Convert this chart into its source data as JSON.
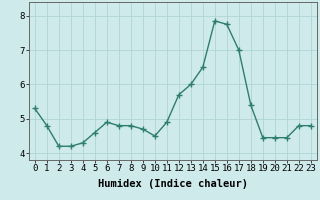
{
  "x": [
    0,
    1,
    2,
    3,
    4,
    5,
    6,
    7,
    8,
    9,
    10,
    11,
    12,
    13,
    14,
    15,
    16,
    17,
    18,
    19,
    20,
    21,
    22,
    23
  ],
  "y": [
    5.3,
    4.8,
    4.2,
    4.2,
    4.3,
    4.6,
    4.9,
    4.8,
    4.8,
    4.7,
    4.5,
    4.9,
    5.7,
    6.0,
    6.5,
    7.85,
    7.75,
    7.0,
    5.4,
    4.45,
    4.45,
    4.45,
    4.8,
    4.8
  ],
  "line_color": "#2e7d6e",
  "marker": "D",
  "marker_size": 2.5,
  "line_width": 1.0,
  "bg_color": "#ceeaea",
  "grid_color": "#b0d4d4",
  "xlabel": "Humidex (Indice chaleur)",
  "xlabel_fontsize": 7.5,
  "tick_fontsize": 6.5,
  "ylim": [
    3.8,
    8.4
  ],
  "yticks": [
    4,
    5,
    6,
    7,
    8
  ],
  "xticks": [
    0,
    1,
    2,
    3,
    4,
    5,
    6,
    7,
    8,
    9,
    10,
    11,
    12,
    13,
    14,
    15,
    16,
    17,
    18,
    19,
    20,
    21,
    22,
    23
  ]
}
